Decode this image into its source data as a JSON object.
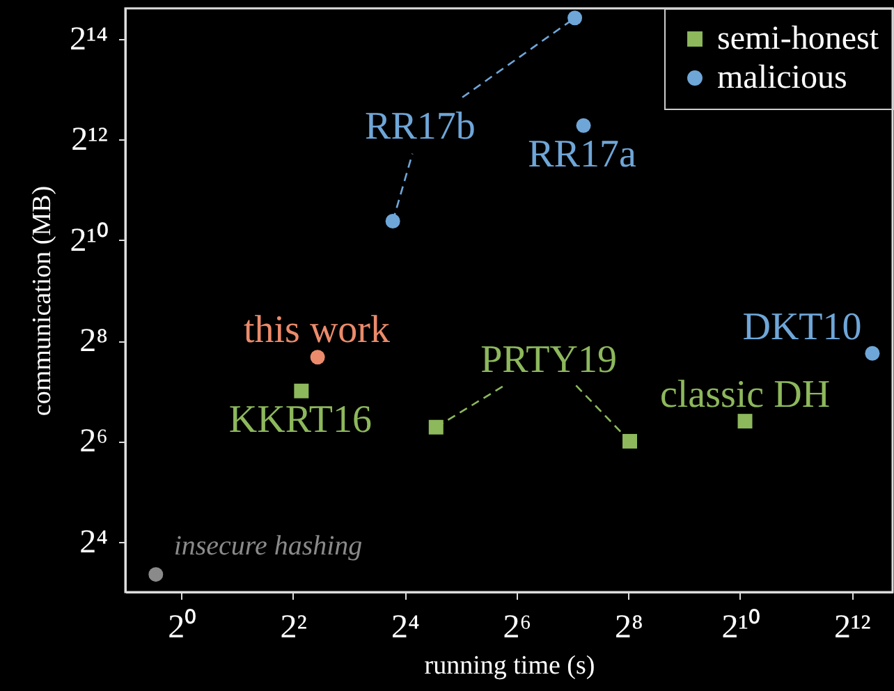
{
  "chart_data": {
    "type": "scatter",
    "xlabel": "running time (s)",
    "ylabel": "communication (MB)",
    "log": "xy",
    "xlim": [
      0.5,
      6800
    ],
    "ylim": [
      8,
      25000
    ],
    "xticks": [
      {
        "value": 1,
        "label": "2⁰"
      },
      {
        "value": 4,
        "label": "2²"
      },
      {
        "value": 16,
        "label": "2⁴"
      },
      {
        "value": 64,
        "label": "2⁶"
      },
      {
        "value": 256,
        "label": "2⁸"
      },
      {
        "value": 1024,
        "label": "2¹⁰"
      },
      {
        "value": 4096,
        "label": "2¹²"
      }
    ],
    "yticks": [
      {
        "value": 16,
        "label": "2⁴"
      },
      {
        "value": 64,
        "label": "2⁶"
      },
      {
        "value": 256,
        "label": "2⁸"
      },
      {
        "value": 1024,
        "label": "2¹⁰"
      },
      {
        "value": 4096,
        "label": "2¹²"
      },
      {
        "value": 16384,
        "label": "2¹⁴"
      }
    ],
    "grid": false,
    "legend": "top right",
    "series": [
      {
        "name": "semi-honest",
        "color": "#8db85c",
        "marker": "square",
        "x": [
          4.44,
          23.6,
          261,
          1090
        ],
        "values": [
          128,
          77.7,
          64,
          84.4
        ]
      },
      {
        "name": "malicious",
        "color": "#6fa6d8",
        "marker": "circle",
        "x": [
          5290,
          13.8,
          132,
          147
        ],
        "values": [
          215,
          1330,
          21900,
          4970
        ]
      },
      {
        "color": "#ec8b6b",
        "marker": "circle",
        "x": [
          5.43
        ],
        "values": [
          204
        ]
      },
      {
        "color": "#8a8a8a",
        "marker": "circle",
        "x": [
          0.73
        ],
        "values": [
          10.2
        ]
      },
      {
        "type": "line",
        "color": "#8db85c",
        "line_style": "dashed",
        "marker": "none",
        "x": [
          23.6,
          55
        ],
        "values": [
          77.7,
          138
        ]
      },
      {
        "type": "line",
        "color": "#8db85c",
        "line_style": "dashed",
        "marker": "none",
        "x": [
          134,
          261
        ],
        "values": [
          138,
          64
        ]
      },
      {
        "type": "line",
        "color": "#6fa6d8",
        "line_style": "dashed",
        "marker": "none",
        "x": [
          13.8,
          17.6
        ],
        "values": [
          1330,
          3370
        ]
      },
      {
        "type": "line",
        "color": "#6fa6d8",
        "line_style": "dashed",
        "marker": "none",
        "x": [
          32.7,
          132
        ],
        "values": [
          7330,
          21900
        ]
      }
    ],
    "annotations": [
      "this work",
      "KKRT16",
      "PRTY19",
      "classic DH",
      "DKT10",
      "insecure hashing",
      "RR17b",
      "RR17a"
    ]
  }
}
